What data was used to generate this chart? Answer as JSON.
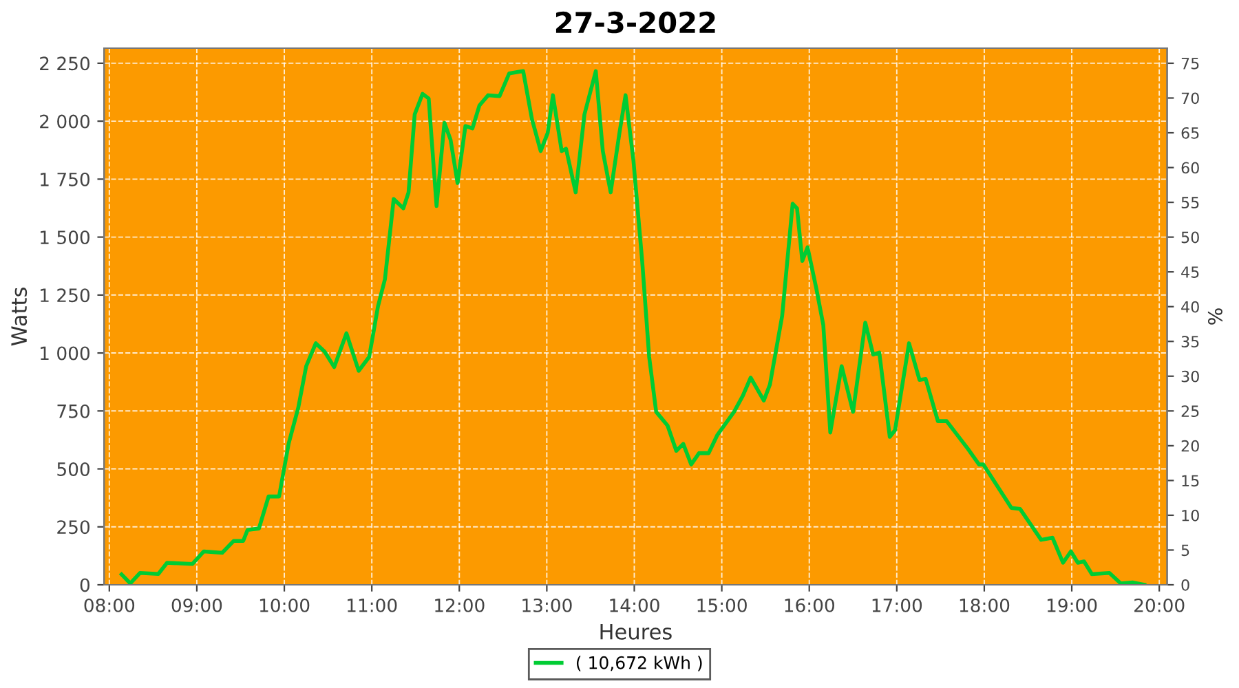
{
  "chart_data": {
    "type": "line",
    "title": "27-3-2022",
    "xlabel": "Heures",
    "ylabel": "Watts",
    "y2label": "%",
    "x": [
      8.14,
      8.24,
      8.35,
      8.56,
      8.66,
      8.95,
      9.08,
      9.29,
      9.42,
      9.53,
      9.58,
      9.71,
      9.82,
      9.94,
      10.05,
      10.16,
      10.25,
      10.36,
      10.46,
      10.57,
      10.71,
      10.85,
      10.97,
      11.07,
      11.15,
      11.25,
      11.36,
      11.42,
      11.49,
      11.58,
      11.65,
      11.74,
      11.83,
      11.9,
      11.98,
      12.07,
      12.15,
      12.23,
      12.33,
      12.46,
      12.57,
      12.73,
      12.83,
      12.93,
      13.01,
      13.07,
      13.17,
      13.22,
      13.33,
      13.43,
      13.56,
      13.64,
      13.73,
      13.83,
      13.9,
      13.99,
      14.09,
      14.17,
      14.25,
      14.38,
      14.48,
      14.56,
      14.65,
      14.74,
      14.85,
      14.95,
      15.14,
      15.24,
      15.33,
      15.48,
      15.55,
      15.69,
      15.81,
      15.86,
      15.92,
      15.98,
      16.08,
      16.16,
      16.24,
      16.37,
      16.5,
      16.64,
      16.73,
      16.8,
      16.92,
      16.98,
      17.14,
      17.26,
      17.33,
      17.47,
      17.57,
      17.81,
      17.94,
      17.99,
      18.31,
      18.41,
      18.65,
      18.78,
      18.9,
      18.99,
      19.07,
      19.14,
      19.23,
      19.43,
      19.56,
      19.7,
      19.83
    ],
    "series": [
      {
        "name": "( 10,672 kWh )",
        "color": "#00cc33",
        "values": [
          45,
          6,
          51,
          47,
          95,
          90,
          144,
          138,
          189,
          189,
          237,
          243,
          381,
          381,
          610,
          765,
          943,
          1042,
          1006,
          939,
          1085,
          923,
          983,
          1200,
          1318,
          1664,
          1624,
          1693,
          2029,
          2118,
          2098,
          1634,
          1993,
          1920,
          1733,
          1979,
          1969,
          2068,
          2112,
          2108,
          2206,
          2216,
          2009,
          1871,
          1949,
          2112,
          1871,
          1881,
          1693,
          2029,
          2216,
          1871,
          1693,
          1949,
          2112,
          1831,
          1397,
          983,
          746,
          687,
          578,
          608,
          519,
          568,
          568,
          647,
          746,
          815,
          894,
          795,
          864,
          1160,
          1644,
          1624,
          1397,
          1456,
          1279,
          1121,
          657,
          943,
          746,
          1131,
          993,
          1002,
          638,
          667,
          1042,
          884,
          888,
          706,
          706,
          588,
          519,
          519,
          332,
          327,
          194,
          203,
          95,
          144,
          95,
          101,
          46,
          51,
          6,
          10,
          0
        ]
      }
    ],
    "xlim": [
      7.94,
      20.09
    ],
    "xticks": [
      {
        "value": 8,
        "label": "08:00"
      },
      {
        "value": 9,
        "label": "09:00"
      },
      {
        "value": 10,
        "label": "10:00"
      },
      {
        "value": 11,
        "label": "11:00"
      },
      {
        "value": 12,
        "label": "12:00"
      },
      {
        "value": 13,
        "label": "13:00"
      },
      {
        "value": 14,
        "label": "14:00"
      },
      {
        "value": 15,
        "label": "15:00"
      },
      {
        "value": 16,
        "label": "16:00"
      },
      {
        "value": 17,
        "label": "17:00"
      },
      {
        "value": 18,
        "label": "18:00"
      },
      {
        "value": 19,
        "label": "19:00"
      },
      {
        "value": 20,
        "label": "20:00"
      }
    ],
    "ylim": [
      0,
      2315
    ],
    "yticks": [
      0,
      250,
      500,
      750,
      {
        "value": 1000,
        "label": "1 000"
      },
      {
        "value": 1250,
        "label": "1 250"
      },
      {
        "value": 1500,
        "label": "1 500"
      },
      {
        "value": 1750,
        "label": "1 750"
      },
      {
        "value": 2000,
        "label": "2 000"
      },
      {
        "value": 2250,
        "label": "2 250"
      }
    ],
    "y2lim": [
      0,
      77.17
    ],
    "y2ticks": [
      0,
      5,
      10,
      15,
      20,
      25,
      30,
      35,
      40,
      45,
      50,
      55,
      60,
      65,
      70,
      75
    ],
    "grid": true,
    "legend": "bottom",
    "marker": "none",
    "line_style": "solid"
  }
}
